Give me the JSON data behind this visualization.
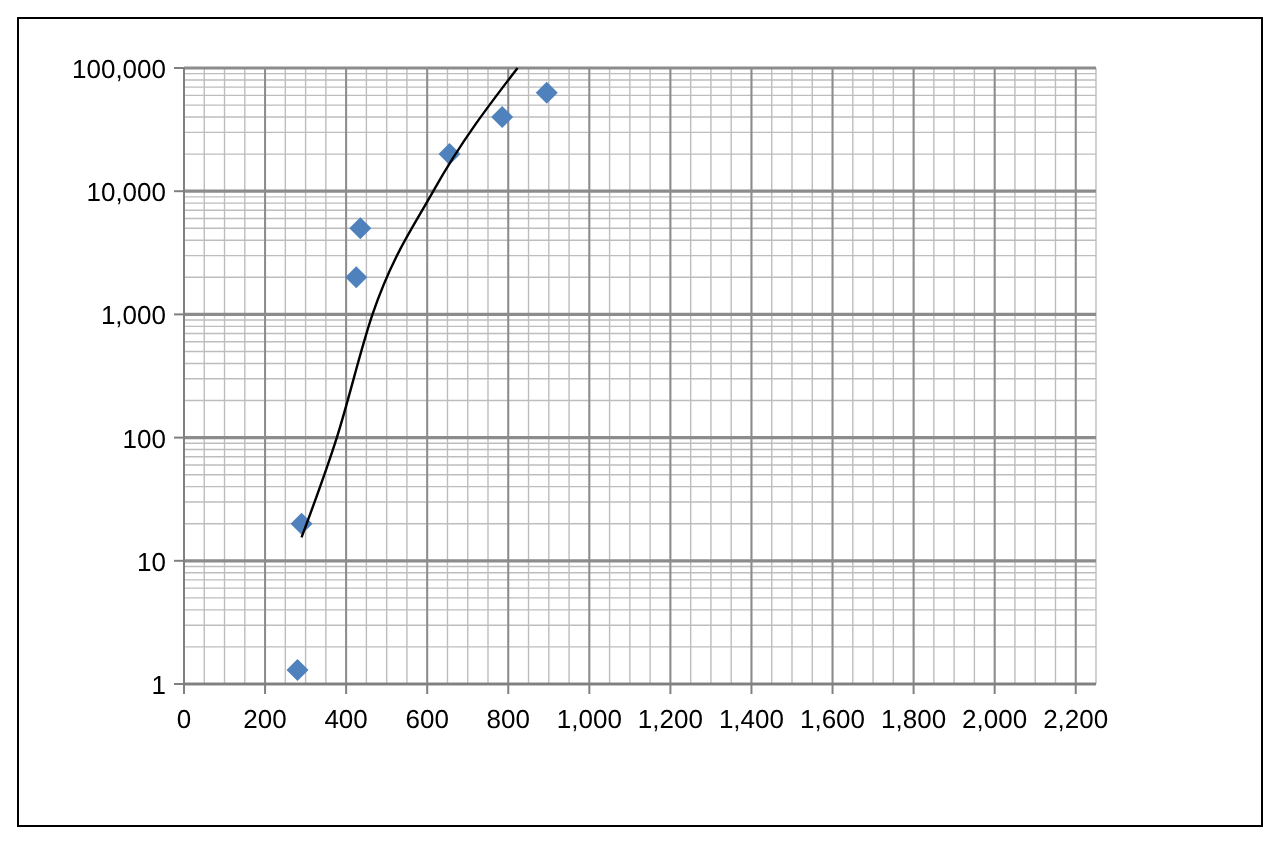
{
  "chart_data": {
    "type": "scatter",
    "log": "y",
    "grid": true,
    "marker": "diamond",
    "xlim": [
      0,
      2250
    ],
    "ylim": [
      1,
      100000
    ],
    "xticks": [
      0,
      200,
      400,
      600,
      800,
      {
        "value": 1000,
        "label": "1,000"
      },
      {
        "value": 1200,
        "label": "1,200"
      },
      {
        "value": 1400,
        "label": "1,400"
      },
      {
        "value": 1600,
        "label": "1,600"
      },
      {
        "value": 1800,
        "label": "1,800"
      },
      {
        "value": 2000,
        "label": "2,000"
      },
      {
        "value": 2200,
        "label": "2,200"
      }
    ],
    "yticks": [
      1,
      10,
      100,
      {
        "value": 1000,
        "label": "1,000"
      },
      {
        "value": 10000,
        "label": "10,000"
      },
      {
        "value": 100000,
        "label": "100,000"
      }
    ],
    "series": [
      {
        "color": "#4f81bd",
        "x": [
          280,
          290,
          425,
          435,
          655,
          785,
          895
        ],
        "values": [
          1.3,
          20,
          2000,
          5000,
          20000,
          40000,
          63000
        ]
      },
      {
        "type": "line",
        "color": "#000000",
        "marker": "none",
        "x": [
          290,
          377,
          465,
          615,
          823
        ],
        "values": [
          15.5,
          100,
          1000,
          10000,
          100000
        ]
      }
    ]
  }
}
